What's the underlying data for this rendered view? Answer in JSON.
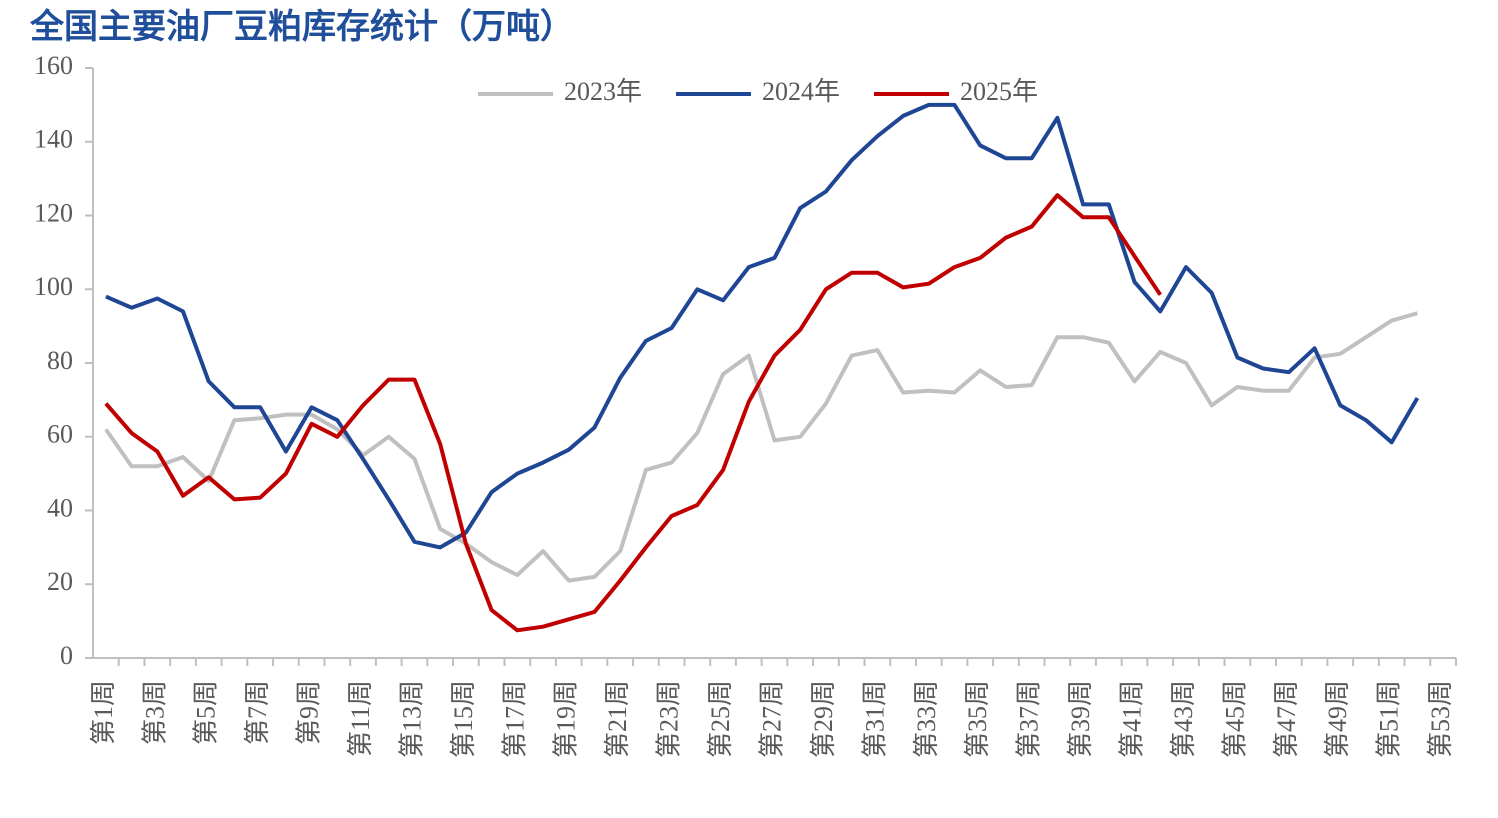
{
  "chart_data": {
    "type": "line",
    "title": "全国主要油厂豆粕库存统计（万吨）",
    "categories": [
      "第1周",
      null,
      "第3周",
      null,
      "第5周",
      null,
      "第7周",
      null,
      "第9周",
      null,
      "第11周",
      null,
      "第13周",
      null,
      "第15周",
      null,
      "第17周",
      null,
      "第19周",
      null,
      "第21周",
      null,
      "第23周",
      null,
      "第25周",
      null,
      "第27周",
      null,
      "第29周",
      null,
      "第31周",
      null,
      "第33周",
      null,
      "第35周",
      null,
      "第37周",
      null,
      "第39周",
      null,
      "第41周",
      null,
      "第43周",
      null,
      "第45周",
      null,
      "第47周",
      null,
      "第49周",
      null,
      "第51周",
      null,
      "第53周"
    ],
    "series": [
      {
        "name": "2023年",
        "color": "#c0c0c0",
        "values": [
          62,
          52,
          52,
          54.5,
          48,
          64.5,
          65,
          66,
          66,
          62,
          55,
          60,
          54,
          35,
          31,
          26,
          22.5,
          29,
          21,
          22,
          29,
          51,
          53,
          61,
          77,
          82,
          59,
          60,
          69,
          82,
          83.5,
          72,
          72.5,
          72,
          78,
          73.5,
          74,
          87,
          87,
          85.5,
          75,
          83,
          80,
          68.5,
          73.5,
          72.5,
          72.5,
          81.5,
          82.5,
          87,
          91.5,
          93.5,
          null
        ]
      },
      {
        "name": "2024年",
        "color": "#1f4694",
        "values": [
          98,
          95,
          97.5,
          94,
          75,
          68,
          68,
          56,
          68,
          64.5,
          54,
          43,
          31.5,
          30,
          34,
          45,
          50,
          53,
          56.5,
          62.5,
          76,
          86,
          89.5,
          100,
          97,
          106,
          108.5,
          122,
          126.5,
          135,
          141.5,
          147,
          150,
          150,
          139,
          135.5,
          135.5,
          146.5,
          123,
          123,
          102,
          94,
          106,
          99,
          81.5,
          78.5,
          77.5,
          84,
          68.5,
          64.5,
          58.5,
          70.5,
          null
        ]
      },
      {
        "name": "2025年",
        "color": "#c00000",
        "values": [
          69,
          61,
          56,
          44,
          49,
          43,
          43.5,
          50,
          63.5,
          60,
          68.5,
          75.5,
          75.5,
          58,
          31,
          13,
          7.5,
          8.5,
          10.5,
          12.5,
          21,
          30,
          38.5,
          41.5,
          51,
          69.5,
          82,
          89,
          100,
          104.5,
          104.5,
          100.5,
          101.5,
          106,
          108.5,
          114,
          117,
          125.5,
          119.5,
          119.5,
          109,
          98.5,
          null,
          null,
          null,
          null,
          null,
          null,
          null,
          null,
          null,
          null,
          null
        ]
      }
    ],
    "ylim": [
      0,
      160
    ],
    "yticks": [
      0,
      20,
      40,
      60,
      80,
      100,
      120,
      140,
      160
    ]
  }
}
